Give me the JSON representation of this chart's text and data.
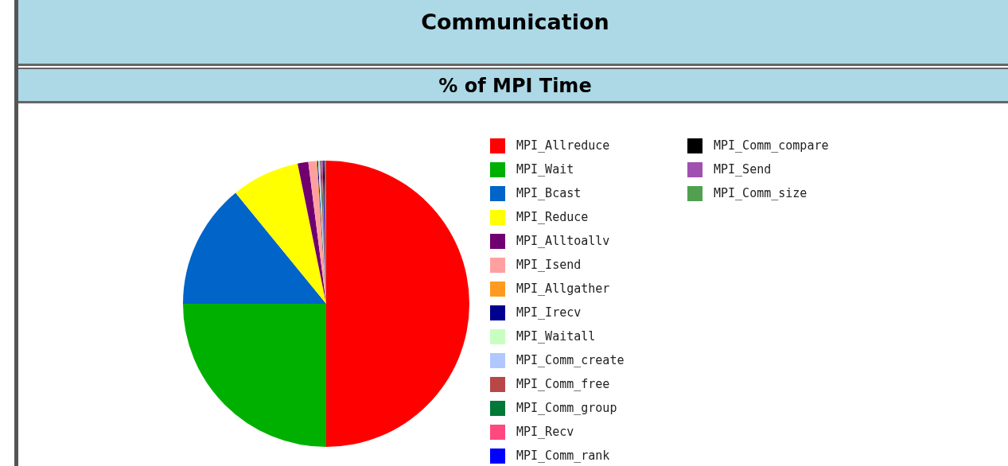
{
  "chart_data": {
    "type": "pie",
    "title": "Communication",
    "subtitle": "% of MPI Time",
    "legend": "right",
    "categories": [
      "MPI_Allreduce",
      "MPI_Wait",
      "MPI_Bcast",
      "MPI_Reduce",
      "MPI_Alltoallv",
      "MPI_Isend",
      "MPI_Allgather",
      "MPI_Irecv",
      "MPI_Waitall",
      "MPI_Comm_create",
      "MPI_Comm_free",
      "MPI_Comm_group",
      "MPI_Recv",
      "MPI_Comm_rank",
      "MPI_Comm_compare",
      "MPI_Send",
      "MPI_Comm_size"
    ],
    "values": [
      50,
      25,
      14.1,
      7.7,
      1.2,
      0.9,
      0.1,
      0.1,
      0.1,
      0.1,
      0.1,
      0.1,
      0.1,
      0.1,
      0.1,
      0.1,
      0.1
    ],
    "colors": [
      "#ff0000",
      "#00b000",
      "#0064c8",
      "#ffff00",
      "#700070",
      "#ffa0a0",
      "#ff9a20",
      "#000090",
      "#c8ffc0",
      "#b0c8ff",
      "#b84848",
      "#007838",
      "#ff4880",
      "#0000ff",
      "#000000",
      "#a050b0",
      "#50a050"
    ]
  }
}
